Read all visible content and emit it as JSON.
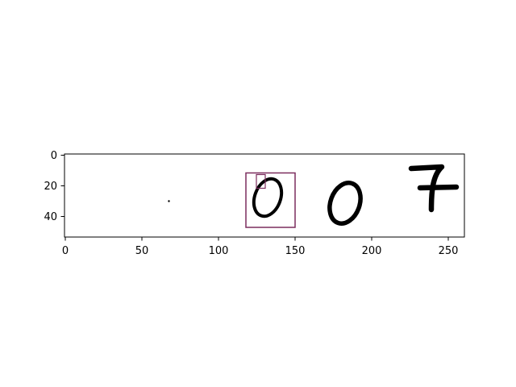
{
  "figure": {
    "background": "#ffffff",
    "axes_color": "#000000",
    "box_color": "#7b2d5e",
    "ink_color": "#000000"
  },
  "axes": {
    "x_ticks": [
      "0",
      "50",
      "100",
      "150",
      "200",
      "250"
    ],
    "y_ticks": [
      "0",
      "20",
      "40"
    ],
    "x_range": [
      0,
      260
    ],
    "y_range_inverted": [
      0,
      54
    ]
  },
  "image_content": {
    "digits": [
      "0",
      "0",
      "7"
    ],
    "annotation_boxes": [
      {
        "label": "large-box",
        "x0": 118,
        "y0": 12,
        "x1": 150,
        "y1": 48
      },
      {
        "label": "small-box",
        "x0": 124,
        "y0": 13,
        "x1": 130,
        "y1": 22
      }
    ]
  }
}
